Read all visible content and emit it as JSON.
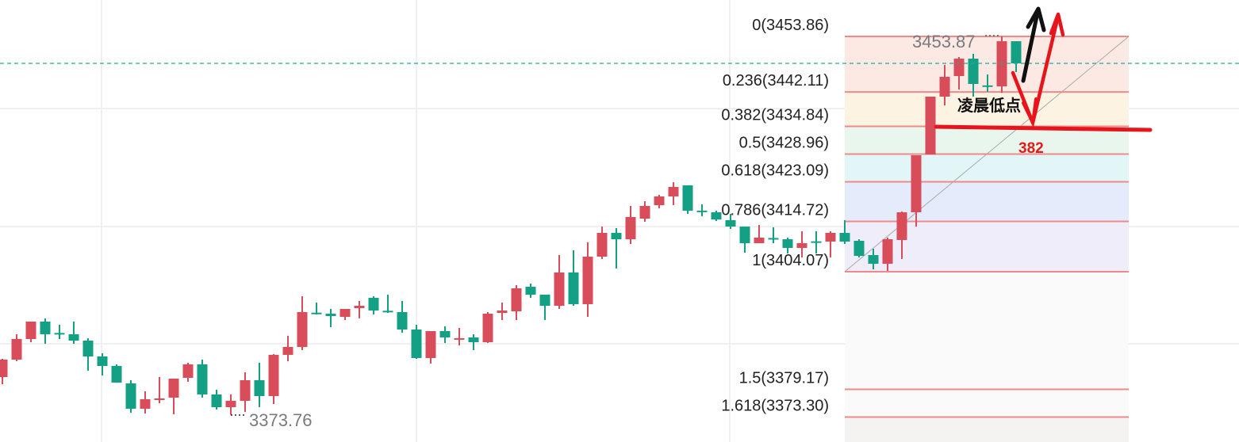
{
  "chart_data": {
    "type": "candlestick",
    "colors": {
      "up": "#d94c5a",
      "down": "#13a085",
      "fib_line": "#ef8a8a",
      "current_price_line": "#26a69a",
      "annotation_red": "#e8141b",
      "annotation_black": "#111111"
    },
    "current_price": 3448.16,
    "candles": [
      [
        3381.77,
        3385.63,
        3380.26,
        3385.46
      ],
      [
        3385.46,
        3390.83,
        3385.13,
        3389.82
      ],
      [
        3389.82,
        3393.51,
        3389.15,
        3393.51
      ],
      [
        3393.51,
        3394.18,
        3388.81,
        3390.83
      ],
      [
        3391.1,
        3392.84,
        3389.82,
        3390.99
      ],
      [
        3390.83,
        3393.51,
        3388.81,
        3389.48
      ],
      [
        3389.48,
        3389.99,
        3383.11,
        3386.13
      ],
      [
        3386.13,
        3386.8,
        3382.11,
        3384.12
      ],
      [
        3384.12,
        3384.46,
        3380.6,
        3380.6
      ],
      [
        3380.43,
        3381.1,
        3374.2,
        3375.07
      ],
      [
        3375.07,
        3378.76,
        3374.06,
        3377.08
      ],
      [
        3377.1,
        3381.77,
        3376.24,
        3377.25
      ],
      [
        3377.42,
        3381.44,
        3373.9,
        3381.44
      ],
      [
        3381.61,
        3384.79,
        3380.77,
        3384.46
      ],
      [
        3384.46,
        3385.46,
        3377.42,
        3378.09
      ],
      [
        3378.09,
        3379.09,
        3374.9,
        3375.4
      ],
      [
        3375.4,
        3378.09,
        3373.76,
        3376.74
      ],
      [
        3376.74,
        3382.78,
        3374.4,
        3381.1
      ],
      [
        3381.1,
        3384.79,
        3375.4,
        3377.75
      ],
      [
        3377.75,
        3386.63,
        3376.07,
        3386.47
      ],
      [
        3386.47,
        3390.49,
        3385.13,
        3388.14
      ],
      [
        3388.14,
        3398.87,
        3387.47,
        3395.52
      ],
      [
        3395.4,
        3397.53,
        3395.02,
        3395.35
      ],
      [
        3395.18,
        3396.19,
        3392.34,
        3394.68
      ],
      [
        3394.51,
        3396.19,
        3393.84,
        3396.19
      ],
      [
        3396.36,
        3397.87,
        3394.2,
        3396.86
      ],
      [
        3398.54,
        3398.87,
        3395.02,
        3395.85
      ],
      [
        3395.8,
        3399.21,
        3395.35,
        3395.69
      ],
      [
        3395.52,
        3397.87,
        3391.16,
        3391.83
      ],
      [
        3391.83,
        3392.84,
        3385.63,
        3385.8
      ],
      [
        3385.8,
        3391.5,
        3384.62,
        3391.5
      ],
      [
        3391.5,
        3392.5,
        3388.98,
        3390.16
      ],
      [
        3389.9,
        3392.17,
        3388.48,
        3390.0
      ],
      [
        3390.16,
        3390.83,
        3387.47,
        3389.15
      ],
      [
        3389.15,
        3395.52,
        3388.98,
        3395.18
      ],
      [
        3395.35,
        3397.53,
        3393.84,
        3395.85
      ],
      [
        3395.69,
        3401.22,
        3393.84,
        3400.55
      ],
      [
        3400.88,
        3401.55,
        3398.54,
        3399.21
      ],
      [
        3399.21,
        3399.21,
        3393.84,
        3396.86
      ],
      [
        3396.86,
        3407.59,
        3396.19,
        3403.9
      ],
      [
        3403.9,
        3408.6,
        3396.86,
        3397.2
      ],
      [
        3397.2,
        3410.27,
        3394.51,
        3407.25
      ],
      [
        3407.25,
        3413.62,
        3406.75,
        3412.28
      ],
      [
        3412.28,
        3413.29,
        3404.74,
        3410.94
      ],
      [
        3410.94,
        3417.98,
        3409.94,
        3415.64
      ],
      [
        3415.3,
        3418.99,
        3414.63,
        3417.98
      ],
      [
        3418.15,
        3420.33,
        3417.48,
        3420.0
      ],
      [
        3420.0,
        3423.01,
        3418.15,
        3422.01
      ],
      [
        3422.34,
        3422.34,
        3416.31,
        3416.98
      ],
      [
        3417.0,
        3418.32,
        3415.8,
        3416.98
      ],
      [
        3416.64,
        3417.0,
        3414.8,
        3415.13
      ],
      [
        3414.97,
        3416.31,
        3413.12,
        3413.62
      ],
      [
        3413.62,
        3413.62,
        3408.09,
        3410.1
      ],
      [
        3410.1,
        3413.96,
        3410.1,
        3411.28
      ],
      [
        3411.2,
        3413.46,
        3410.1,
        3411.11
      ],
      [
        3410.94,
        3411.28,
        3407.93,
        3409.1
      ],
      [
        3409.1,
        3412.62,
        3407.09,
        3410.1
      ],
      [
        3410.5,
        3412.62,
        3407.93,
        3410.44
      ],
      [
        3410.44,
        3412.62,
        3407.09,
        3412.28
      ],
      [
        3412.28,
        3414.97,
        3409.94,
        3410.44
      ],
      [
        3410.61,
        3410.94,
        3407.09,
        3407.42
      ],
      [
        3407.59,
        3408.93,
        3404.57,
        3405.75
      ],
      [
        3405.75,
        3411.28,
        3404.24,
        3410.94
      ],
      [
        3410.78,
        3416.81,
        3406.75,
        3416.64
      ],
      [
        3416.64,
        3428.71,
        3413.62,
        3428.71
      ],
      [
        3428.88,
        3441.12,
        3428.88,
        3441.12
      ],
      [
        3441.12,
        3447.82,
        3439.27,
        3445.31
      ],
      [
        3445.48,
        3449.5,
        3442.63,
        3449.16
      ],
      [
        3449.16,
        3450.17,
        3441.12,
        3443.8
      ],
      [
        3443.5,
        3445.81,
        3442.12,
        3443.46
      ],
      [
        3443.3,
        3453.87,
        3441.96,
        3452.85
      ],
      [
        3452.85,
        3452.85,
        3446.31,
        3448.16
      ]
    ],
    "candle_fields": [
      "open",
      "high",
      "low",
      "close"
    ],
    "fibonacci": {
      "levels": [
        {
          "ratio": 0,
          "price": 3453.86,
          "label": "0(3453.86)",
          "band_color": "#fde9e3"
        },
        {
          "ratio": 0.236,
          "price": 3442.11,
          "label": "0.236(3442.11)",
          "band_color": "#fdf3e3"
        },
        {
          "ratio": 0.382,
          "price": 3434.84,
          "label": "0.382(3434.84)",
          "band_color": "#e9f6ee"
        },
        {
          "ratio": 0.5,
          "price": 3428.96,
          "label": "0.5(3428.96)",
          "band_color": "#e2f5f7"
        },
        {
          "ratio": 0.618,
          "price": 3423.09,
          "label": "0.618(3423.09)",
          "band_color": "#e4ebfb"
        },
        {
          "ratio": 0.786,
          "price": 3414.72,
          "label": "0.786(3414.72)",
          "band_color": "#efedf9"
        },
        {
          "ratio": 1,
          "price": 3404.07,
          "label": "1(3404.07)",
          "band_color": "#fafafa"
        },
        {
          "ratio": 1.5,
          "price": 3379.17,
          "label": "1.5(3379.17)",
          "band_color": "#fafafa"
        },
        {
          "ratio": 1.618,
          "price": 3373.3,
          "label": "1.618(3373.30)",
          "band_color": "#fbe4ec"
        }
      ],
      "below_color": "#f5f2f2"
    },
    "annotations": {
      "high_label": "3453.87",
      "low_label": "3373.76",
      "note_text": "凌晨低点",
      "level_note": "382"
    },
    "grid": true
  }
}
